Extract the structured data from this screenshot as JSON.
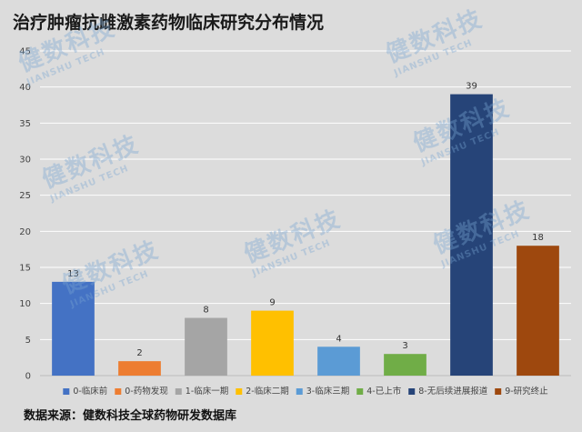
{
  "title": "治疗肿瘤抗雌激素药物临床研究分布情况",
  "source": "数据来源：健数科技全球药物研发数据库",
  "watermark": {
    "cn": "健数科技",
    "en": "JIANSHU TECH"
  },
  "chart_data": {
    "type": "bar",
    "categories": [
      "0-临床前",
      "0-药物发现",
      "1-临床一期",
      "2-临床二期",
      "3-临床三期",
      "4-已上市",
      "8-无后续进展报道",
      "9-研究终止"
    ],
    "values": [
      13,
      2,
      8,
      9,
      4,
      3,
      39,
      18
    ],
    "colors": [
      "#4472c4",
      "#ed7d31",
      "#a5a5a5",
      "#ffc000",
      "#5b9bd5",
      "#70ad47",
      "#264478",
      "#9e480e"
    ],
    "ylim": [
      0,
      45
    ],
    "yticks": [
      0,
      5,
      10,
      15,
      20,
      25,
      30,
      35,
      40,
      45
    ],
    "grid": true,
    "legend_position": "bottom",
    "data_labels": true
  }
}
